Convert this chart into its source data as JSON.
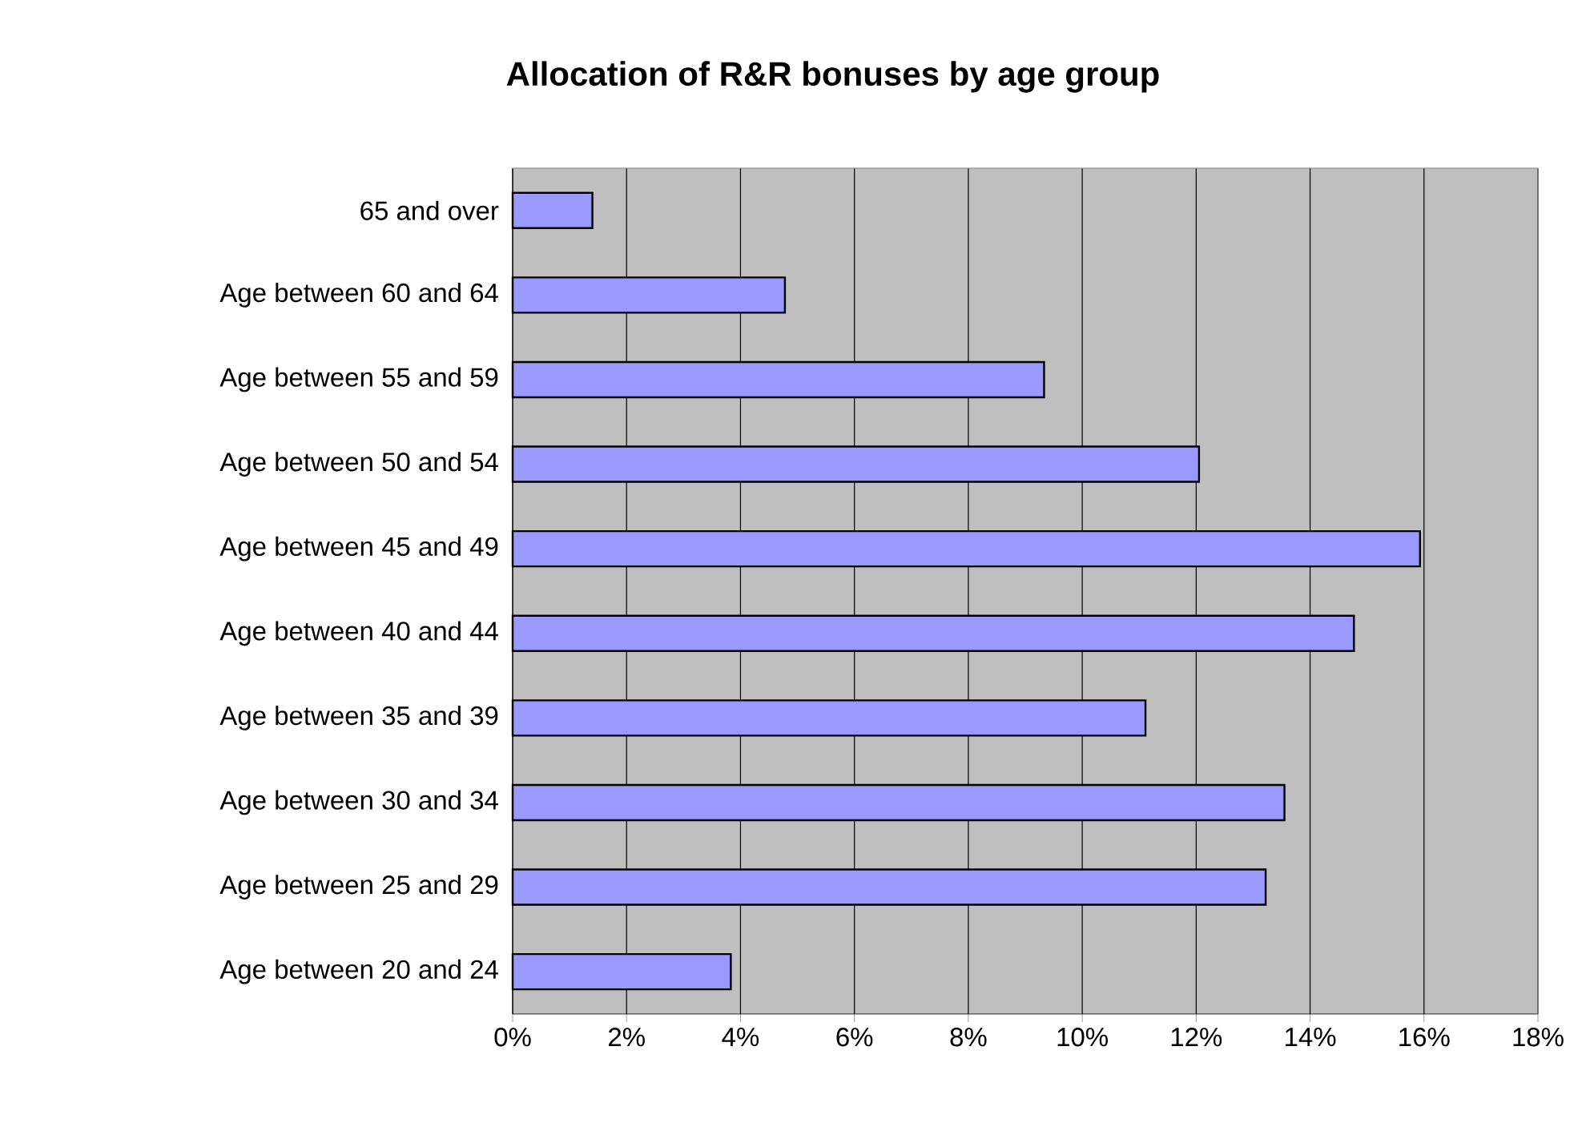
{
  "chart_data": {
    "type": "bar",
    "orientation": "horizontal",
    "title": "Allocation of R&R bonuses by age group",
    "categories": [
      "65 and over",
      "Age between 60 and 64",
      "Age between 55 and 59",
      "Age between 50 and 54",
      "Age between 45 and 49",
      "Age between 40 and 44",
      "Age between 35 and 39",
      "Age between 30 and 34",
      "Age between 25 and 29",
      "Age between 20 and 24"
    ],
    "values": [
      1.4,
      4.78,
      9.33,
      12.05,
      15.93,
      14.77,
      11.11,
      13.55,
      13.22,
      3.83
    ],
    "color": "#9999ff",
    "xlim": [
      0,
      18
    ],
    "xticks": [
      {
        "value": 0,
        "label": "0%"
      },
      {
        "value": 2,
        "label": "2%"
      },
      {
        "value": 4,
        "label": "4%"
      },
      {
        "value": 6,
        "label": "6%"
      },
      {
        "value": 8,
        "label": "8%"
      },
      {
        "value": 10,
        "label": "10%"
      },
      {
        "value": 12,
        "label": "12%"
      },
      {
        "value": 14,
        "label": "14%"
      },
      {
        "value": 16,
        "label": "16%"
      },
      {
        "value": 18,
        "label": "18%"
      }
    ],
    "grid": "x"
  }
}
